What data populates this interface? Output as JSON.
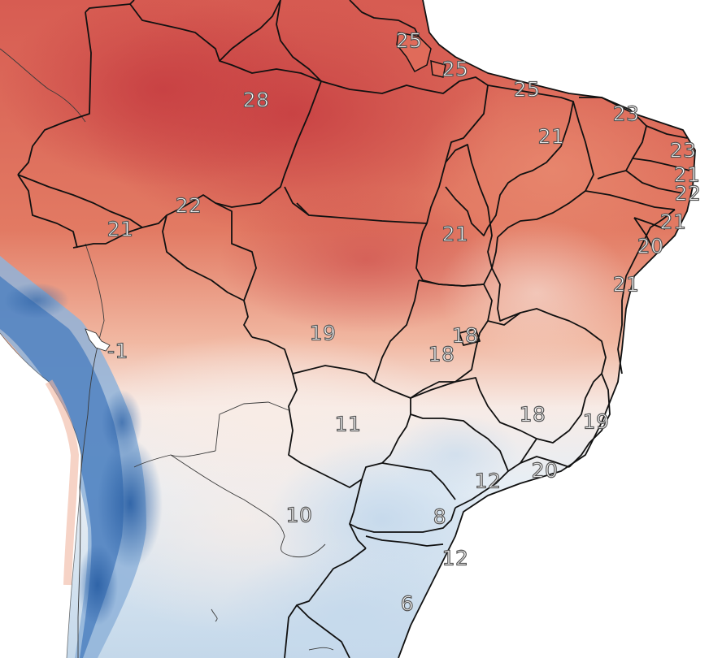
{
  "map": {
    "labels": [
      {
        "name": "label-para-amapa-coast",
        "value": "25"
      },
      {
        "name": "label-maranhao-coast",
        "value": "25"
      },
      {
        "name": "label-ceara-west",
        "value": "25"
      },
      {
        "name": "label-amazonas",
        "value": "28"
      },
      {
        "name": "label-ceara",
        "value": "23"
      },
      {
        "name": "label-piaui",
        "value": "21"
      },
      {
        "name": "label-rio-grande-do-norte",
        "value": "23"
      },
      {
        "name": "label-paraiba",
        "value": "21"
      },
      {
        "name": "label-pernambuco",
        "value": "22"
      },
      {
        "name": "label-rondonia",
        "value": "22"
      },
      {
        "name": "label-acre",
        "value": "21"
      },
      {
        "name": "label-tocantins",
        "value": "21"
      },
      {
        "name": "label-alagoas",
        "value": "21"
      },
      {
        "name": "label-sergipe",
        "value": "20"
      },
      {
        "name": "label-bahia-coast",
        "value": "21"
      },
      {
        "name": "label-mato-grosso",
        "value": "19"
      },
      {
        "name": "label-bolivia-highlands",
        "value": "-1"
      },
      {
        "name": "label-brasilia",
        "value": "18"
      },
      {
        "name": "label-goias",
        "value": "18"
      },
      {
        "name": "label-minas-gerais",
        "value": "18"
      },
      {
        "name": "label-espirito-santo",
        "value": "19"
      },
      {
        "name": "label-mato-grosso-do-sul",
        "value": "11"
      },
      {
        "name": "label-sao-paulo",
        "value": "12"
      },
      {
        "name": "label-rio-de-janeiro",
        "value": "20"
      },
      {
        "name": "label-paraguay",
        "value": "10"
      },
      {
        "name": "label-parana",
        "value": "8"
      },
      {
        "name": "label-santa-catarina",
        "value": "12"
      },
      {
        "name": "label-rio-grande-do-sul",
        "value": "6"
      }
    ]
  },
  "colors": {
    "hot": "#c94a46",
    "warm": "#e47d66",
    "mild": "#f4c7b4",
    "neutral": "#f6ecea",
    "cool": "#dbe7f1",
    "cold": "#5c8fc4",
    "coldest": "#24589c",
    "ocean": "#ffffff",
    "border": "#1a1a1a"
  }
}
